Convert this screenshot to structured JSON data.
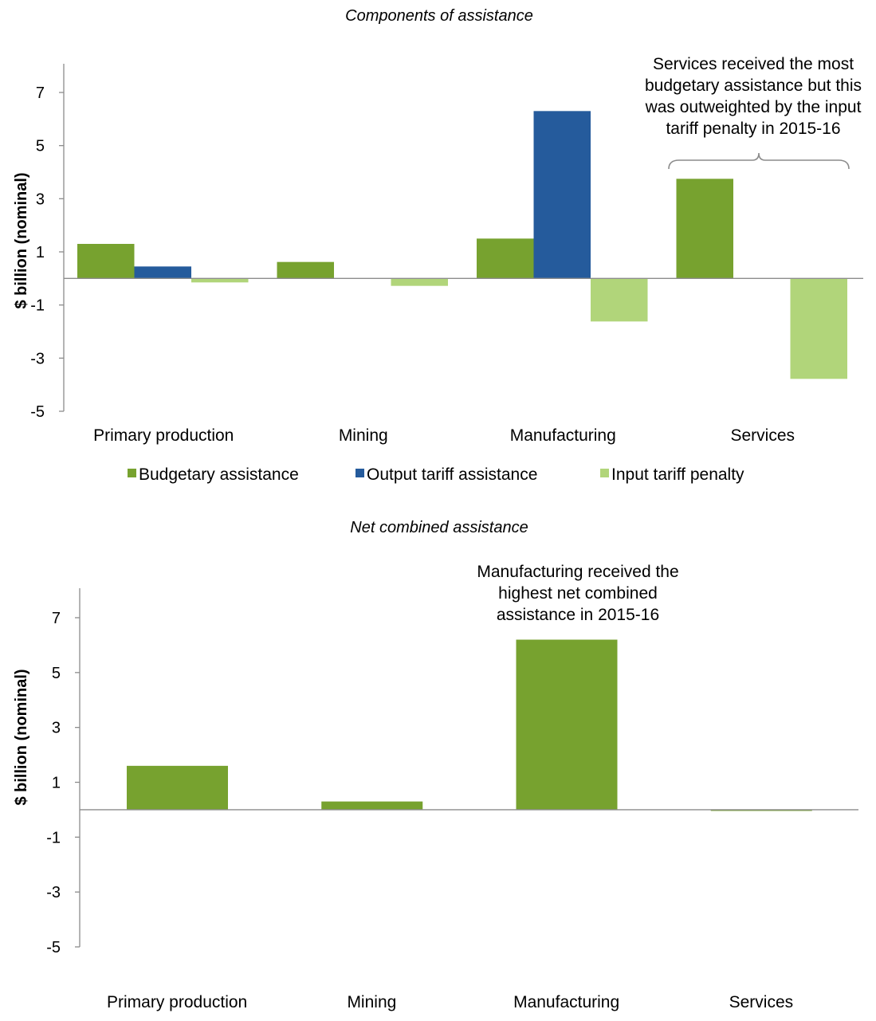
{
  "chart_data": [
    {
      "type": "bar",
      "title": "Components of assistance",
      "ylabel": "$ billion (nominal)",
      "ylim": [
        -5,
        8
      ],
      "yticks": [
        "7",
        "5",
        "3",
        "1",
        "-1",
        "-3",
        "-5"
      ],
      "categories": [
        "Primary production",
        "Mining",
        "Manufacturing",
        "Services"
      ],
      "series": [
        {
          "name": "Budgetary assistance",
          "color": "#77a22f",
          "values": [
            1.3,
            0.62,
            1.5,
            3.75
          ]
        },
        {
          "name": "Output tariff assistance",
          "color": "#255b9c",
          "values": [
            0.45,
            0,
            6.3,
            0
          ]
        },
        {
          "name": "Input tariff penalty",
          "color": "#b1d57a",
          "values": [
            -0.15,
            -0.28,
            -1.62,
            -3.78
          ]
        }
      ],
      "annotation": [
        "Services received the most",
        "budgetary assistance but this",
        "was outweighted by the input",
        "tariff penalty in 2015-16"
      ]
    },
    {
      "type": "bar",
      "title": "Net combined assistance",
      "ylabel": "$ billion (nominal)",
      "ylim": [
        -5,
        8
      ],
      "yticks": [
        "7",
        "5",
        "3",
        "1",
        "-1",
        "-3",
        "-5"
      ],
      "categories": [
        "Primary production",
        "Mining",
        "Manufacturing",
        "Services"
      ],
      "series": [
        {
          "color": "#77a22f",
          "values": [
            1.6,
            0.3,
            6.2,
            -0.03
          ]
        }
      ],
      "annotation": [
        "Manufacturing received the",
        "highest net combined",
        "assistance in 2015-16"
      ]
    }
  ]
}
